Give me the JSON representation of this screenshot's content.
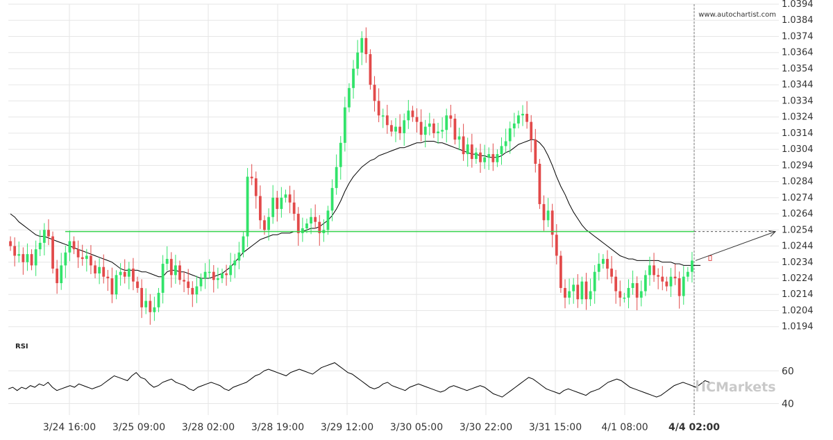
{
  "watermark": "www.autochartist.com",
  "brand": {
    "name": "ICMarkets",
    "prefix": "IC",
    "suffix": "Markets"
  },
  "colors": {
    "bull": "#32e36a",
    "bear": "#e24a4a",
    "level": "#37d34e",
    "ma": "#000000",
    "rsi": "#000000",
    "grid": "#e6e6e6",
    "axis_text": "#333333",
    "brand_text": "#c9c9c9"
  },
  "chart_data": [
    {
      "type": "candlestick",
      "title": "",
      "y_axis_side": "right",
      "y_ticks": [
        "1.0394",
        "1.0384",
        "1.0374",
        "1.0364",
        "1.0354",
        "1.0344",
        "1.0334",
        "1.0324",
        "1.0314",
        "1.0304",
        "1.0294",
        "1.0284",
        "1.0274",
        "1.0264",
        "1.0254",
        "1.0244",
        "1.0234",
        "1.0224",
        "1.0214",
        "1.0204",
        "1.0194"
      ],
      "ylim": [
        1.019,
        1.0394
      ],
      "x_ticks": [
        "3/24 16:00",
        "3/25 09:00",
        "3/28 02:00",
        "3/28 19:00",
        "3/29 12:00",
        "3/30 05:00",
        "3/30 22:00",
        "3/31 15:00",
        "4/1 08:00",
        "4/4 02:00"
      ],
      "highlight_x_tick": "4/4 02:00",
      "support_resistance_level": 1.0253,
      "projection": {
        "from": 1.0235,
        "to": 1.0253
      },
      "grid": true,
      "legend": "none",
      "closes": [
        1.0244,
        1.0238,
        1.0239,
        1.0234,
        1.0239,
        1.0232,
        1.0242,
        1.0246,
        1.0254,
        1.025,
        1.023,
        1.0221,
        1.0232,
        1.024,
        1.0247,
        1.0242,
        1.0237,
        1.0236,
        1.0238,
        1.0232,
        1.0227,
        1.0231,
        1.0225,
        1.0224,
        1.0214,
        1.0226,
        1.0228,
        1.0225,
        1.023,
        1.0222,
        1.0218,
        1.0206,
        1.021,
        1.0203,
        1.0206,
        1.0215,
        1.0233,
        1.0236,
        1.0226,
        1.0232,
        1.0223,
        1.0222,
        1.0218,
        1.0214,
        1.0219,
        1.0224,
        1.0228,
        1.0228,
        1.0223,
        1.0224,
        1.0227,
        1.0226,
        1.0232,
        1.0235,
        1.024,
        1.025,
        1.0287,
        1.0286,
        1.0275,
        1.026,
        1.0254,
        1.0262,
        1.0274,
        1.0267,
        1.0274,
        1.0276,
        1.0271,
        1.0264,
        1.0252,
        1.0255,
        1.0258,
        1.0262,
        1.0259,
        1.0252,
        1.0254,
        1.0266,
        1.028,
        1.0293,
        1.0308,
        1.033,
        1.0342,
        1.0354,
        1.0364,
        1.0373,
        1.0363,
        1.0344,
        1.0334,
        1.0325,
        1.0325,
        1.0319,
        1.0315,
        1.0318,
        1.0314,
        1.0322,
        1.0328,
        1.0324,
        1.0321,
        1.0313,
        1.0318,
        1.032,
        1.0314,
        1.0315,
        1.0316,
        1.0325,
        1.0323,
        1.031,
        1.0312,
        1.0301,
        1.0307,
        1.0298,
        1.0302,
        1.0296,
        1.0299,
        1.0301,
        1.0296,
        1.0301,
        1.0306,
        1.0309,
        1.0317,
        1.032,
        1.0325,
        1.0326,
        1.0321,
        1.031,
        1.0295,
        1.027,
        1.026,
        1.0266,
        1.0251,
        1.0238,
        1.0218,
        1.0212,
        1.0216,
        1.022,
        1.0211,
        1.0222,
        1.0211,
        1.0216,
        1.0228,
        1.0233,
        1.0236,
        1.023,
        1.0225,
        1.0216,
        1.0212,
        1.0212,
        1.0218,
        1.0221,
        1.0212,
        1.0216,
        1.0226,
        1.0232,
        1.0226,
        1.0225,
        1.0222,
        1.0219,
        1.0225,
        1.0224,
        1.0213,
        1.0225,
        1.0228,
        1.0235
      ],
      "moving_average": [
        1.0264,
        1.0262,
        1.0259,
        1.0257,
        1.0255,
        1.0253,
        1.0251,
        1.025,
        1.025,
        1.0249,
        1.0248,
        1.0247,
        1.0246,
        1.0245,
        1.0244,
        1.0243,
        1.0242,
        1.0241,
        1.024,
        1.0239,
        1.0238,
        1.0237,
        1.0236,
        1.0235,
        1.0234,
        1.0232,
        1.023,
        1.0229,
        1.0229,
        1.0229,
        1.0229,
        1.0228,
        1.0228,
        1.0227,
        1.0226,
        1.0225,
        1.0225,
        1.0228,
        1.0229,
        1.0229,
        1.0228,
        1.0228,
        1.0227,
        1.0226,
        1.0225,
        1.0224,
        1.0224,
        1.0224,
        1.0225,
        1.0226,
        1.0227,
        1.0229,
        1.0231,
        1.0234,
        1.0237,
        1.024,
        1.0242,
        1.0244,
        1.0246,
        1.0248,
        1.0249,
        1.025,
        1.0251,
        1.0251,
        1.0252,
        1.0252,
        1.0252,
        1.0253,
        1.0253,
        1.0253,
        1.0254,
        1.0255,
        1.0255,
        1.0256,
        1.0258,
        1.026,
        1.0263,
        1.0267,
        1.0272,
        1.0278,
        1.0283,
        1.0287,
        1.029,
        1.0293,
        1.0295,
        1.0297,
        1.0298,
        1.03,
        1.0301,
        1.0302,
        1.0303,
        1.0304,
        1.0305,
        1.0305,
        1.0306,
        1.0307,
        1.0308,
        1.0308,
        1.0309,
        1.0309,
        1.0309,
        1.0308,
        1.0308,
        1.0307,
        1.0306,
        1.0305,
        1.0304,
        1.0303,
        1.0302,
        1.0301,
        1.0301,
        1.03,
        1.03,
        1.0299,
        1.0299,
        1.0299,
        1.03,
        1.0302,
        1.0303,
        1.0305,
        1.0307,
        1.0308,
        1.0309,
        1.031,
        1.031,
        1.0308,
        1.0305,
        1.03,
        1.0294,
        1.0287,
        1.0281,
        1.0276,
        1.027,
        1.0265,
        1.0261,
        1.0257,
        1.0254,
        1.0252,
        1.025,
        1.0248,
        1.0246,
        1.0244,
        1.0242,
        1.024,
        1.0238,
        1.0237,
        1.0236,
        1.0236,
        1.0235,
        1.0235,
        1.0235,
        1.0235,
        1.0235,
        1.0235,
        1.0234,
        1.0234,
        1.0234,
        1.0233,
        1.0233,
        1.0232,
        1.0232,
        1.0232,
        1.0232,
        1.0232
      ]
    },
    {
      "type": "line",
      "title": "RSI",
      "y_ticks": [
        "60",
        "40"
      ],
      "ylim": [
        33,
        78
      ],
      "grid": true,
      "legend": "none",
      "values": [
        49,
        50,
        48,
        50,
        49,
        51,
        50,
        52,
        51,
        53,
        50,
        48,
        49,
        50,
        51,
        50,
        52,
        51,
        50,
        49,
        50,
        51,
        53,
        55,
        57,
        56,
        55,
        54,
        57,
        59,
        56,
        55,
        52,
        50,
        51,
        53,
        54,
        55,
        53,
        52,
        51,
        49,
        48,
        50,
        51,
        52,
        53,
        52,
        51,
        49,
        48,
        50,
        51,
        52,
        53,
        55,
        57,
        58,
        60,
        61,
        60,
        59,
        58,
        57,
        59,
        60,
        61,
        60,
        59,
        58,
        60,
        62,
        63,
        64,
        65,
        63,
        61,
        59,
        58,
        56,
        54,
        52,
        50,
        49,
        50,
        52,
        53,
        51,
        50,
        49,
        48,
        50,
        51,
        52,
        51,
        50,
        49,
        48,
        47,
        48,
        50,
        51,
        50,
        49,
        48,
        49,
        50,
        51,
        50,
        48,
        46,
        45,
        44,
        46,
        48,
        50,
        52,
        54,
        56,
        55,
        53,
        51,
        49,
        48,
        47,
        46,
        48,
        49,
        48,
        47,
        46,
        45,
        47,
        48,
        49,
        51,
        53,
        54,
        55,
        54,
        52,
        50,
        49,
        48,
        47,
        46,
        45,
        44,
        45,
        47,
        49,
        51,
        52,
        53,
        52,
        51,
        50,
        52,
        54,
        53
      ]
    }
  ]
}
